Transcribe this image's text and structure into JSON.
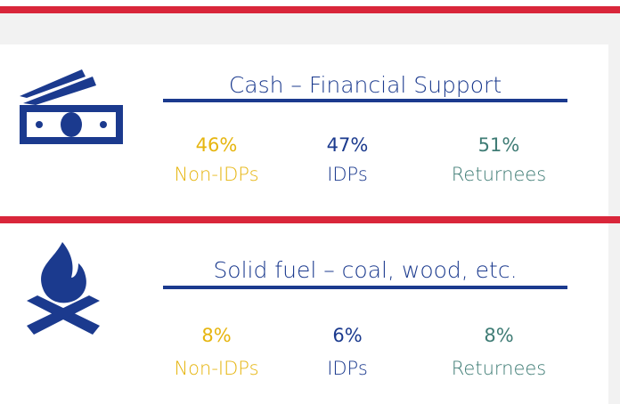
{
  "panels": [
    {
      "title": "Cash – Financial Support",
      "stats": [
        {
          "value": "46%",
          "label": "Non-IDPs"
        },
        {
          "value": "47%",
          "label": "IDPs"
        },
        {
          "value": "51%",
          "label": "Returnees"
        }
      ]
    },
    {
      "title": "Solid fuel – coal, wood, etc.",
      "stats": [
        {
          "value": "8%",
          "label": "Non-IDPs"
        },
        {
          "value": "6%",
          "label": "IDPs"
        },
        {
          "value": "8%",
          "label": "Returnees"
        }
      ]
    }
  ]
}
